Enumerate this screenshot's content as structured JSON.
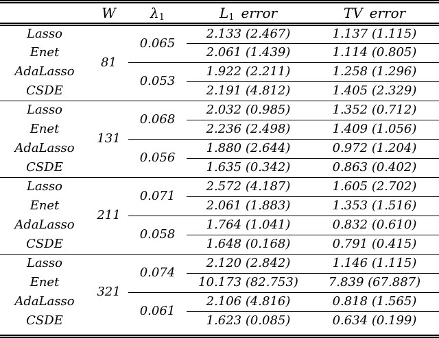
{
  "page": {
    "background": "#ffffff",
    "text_color": "#000000",
    "rule_color": "#000000"
  },
  "table": {
    "header": {
      "method": "",
      "w": "W",
      "lambda_main": "λ",
      "lambda_sub": "1",
      "l1_main": "L",
      "l1_sub": "1",
      "l1_word": "error",
      "tv_main": "TV",
      "tv_word": "error"
    },
    "blocks": [
      {
        "w": "81",
        "lambda_upper": "0.065",
        "lambda_lower": "0.053",
        "rows": [
          {
            "method": "Lasso",
            "l1_error": "2.133 (2.467)",
            "tv_error": "1.137 (1.115)"
          },
          {
            "method": "Enet",
            "l1_error": "2.061 (1.439)",
            "tv_error": "1.114 (0.805)"
          },
          {
            "method": "AdaLasso",
            "l1_error": "1.922 (2.211)",
            "tv_error": "1.258 (1.296)"
          },
          {
            "method": "CSDE",
            "l1_error": "2.191 (4.812)",
            "tv_error": "1.405 (2.329)"
          }
        ]
      },
      {
        "w": "131",
        "lambda_upper": "0.068",
        "lambda_lower": "0.056",
        "rows": [
          {
            "method": "Lasso",
            "l1_error": "2.032 (0.985)",
            "tv_error": "1.352 (0.712)"
          },
          {
            "method": "Enet",
            "l1_error": "2.236 (2.498)",
            "tv_error": "1.409 (1.056)"
          },
          {
            "method": "AdaLasso",
            "l1_error": "1.880 (2.644)",
            "tv_error": "0.972 (1.204)"
          },
          {
            "method": "CSDE",
            "l1_error": "1.635 (0.342)",
            "tv_error": "0.863 (0.402)"
          }
        ]
      },
      {
        "w": "211",
        "lambda_upper": "0.071",
        "lambda_lower": "0.058",
        "rows": [
          {
            "method": "Lasso",
            "l1_error": "2.572 (4.187)",
            "tv_error": "1.605 (2.702)"
          },
          {
            "method": "Enet",
            "l1_error": "2.061 (1.883)",
            "tv_error": "1.353 (1.516)"
          },
          {
            "method": "AdaLasso",
            "l1_error": "1.764 (1.041)",
            "tv_error": "0.832 (0.610)"
          },
          {
            "method": "CSDE",
            "l1_error": "1.648 (0.168)",
            "tv_error": "0.791 (0.415)"
          }
        ]
      },
      {
        "w": "321",
        "lambda_upper": "0.074",
        "lambda_lower": "0.061",
        "rows": [
          {
            "method": "Lasso",
            "l1_error": "2.120 (2.842)",
            "tv_error": "1.146 (1.115)"
          },
          {
            "method": "Enet",
            "l1_error": "10.173 (82.753)",
            "tv_error": "7.839 (67.887)"
          },
          {
            "method": "AdaLasso",
            "l1_error": "2.106 (4.816)",
            "tv_error": "0.818 (1.565)"
          },
          {
            "method": "CSDE",
            "l1_error": "1.623 (0.085)",
            "tv_error": "0.634 (0.199)"
          }
        ]
      }
    ]
  }
}
